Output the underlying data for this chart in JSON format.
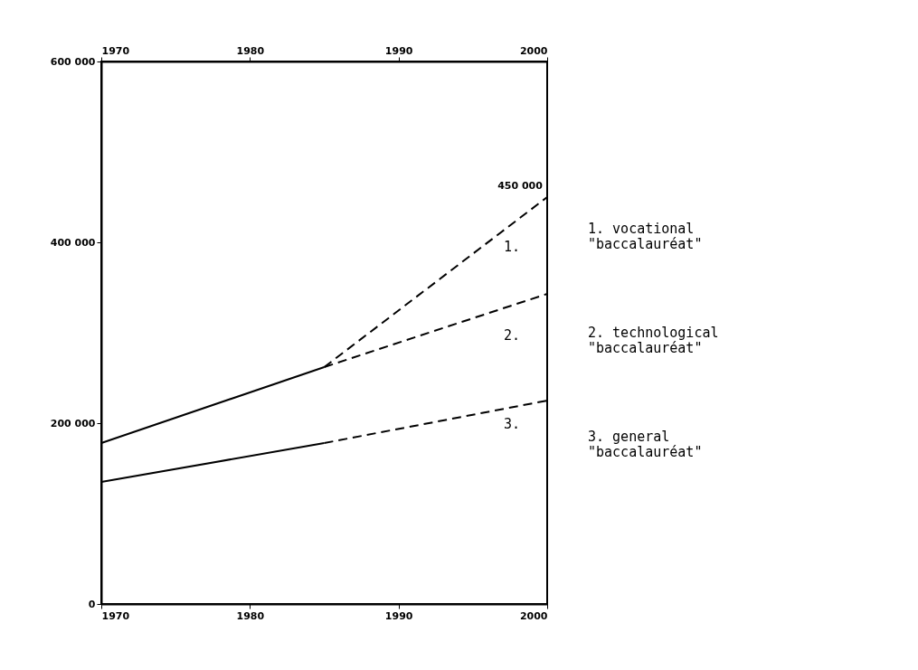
{
  "chart_data": {
    "type": "line",
    "series": [
      {
        "color": "#000000",
        "line_style": "solid",
        "x": [
          1970,
          1985
        ],
        "values": [
          135000,
          178000
        ]
      },
      {
        "color": "#000000",
        "line_style": "dashed",
        "x": [
          1985,
          2000
        ],
        "values": [
          178000,
          225000
        ]
      },
      {
        "color": "#000000",
        "line_style": "solid",
        "x": [
          1970,
          1985
        ],
        "values": [
          178000,
          262000
        ]
      },
      {
        "color": "#000000",
        "line_style": "dashed",
        "x": [
          1985,
          2000
        ],
        "values": [
          262000,
          343000
        ]
      },
      {
        "color": "#000000",
        "line_style": "dashed",
        "x": [
          1985,
          2000
        ],
        "values": [
          262000,
          450000
        ]
      }
    ],
    "xlim": [
      1970,
      2000
    ],
    "xticks": [
      1970,
      1980,
      1990,
      2000
    ],
    "x2lim": [
      1970,
      2000
    ],
    "x2ticks": [
      1970,
      1980,
      1990,
      2000
    ],
    "ylim": [
      0,
      600000
    ],
    "yticks": [
      0,
      {
        "value": 200000,
        "label": "200 000"
      },
      {
        "value": 400000,
        "label": "400 000"
      },
      {
        "value": 600000,
        "label": "600 000"
      }
    ],
    "annotations": [
      {
        "text": "450 000",
        "x": 2000,
        "y": 450000
      },
      "1.",
      "2.",
      "3.",
      "1. vocational\n   \"baccalauréat\"",
      "2. technological\n   \"baccalauréat\"",
      "3. general\n   \"baccalauréat\""
    ]
  }
}
